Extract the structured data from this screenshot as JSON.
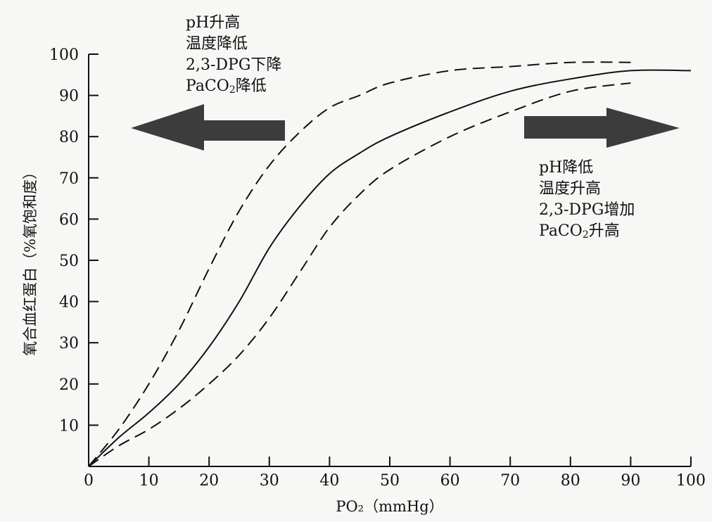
{
  "chart_data": {
    "type": "line",
    "xlabel": "PO₂（mmHg）",
    "ylabel": "氧合血红蛋白（%氧饱和度）",
    "xlim": [
      0,
      100
    ],
    "ylim": [
      0,
      100
    ],
    "x_ticks": [
      "0",
      "10",
      "20",
      "30",
      "40",
      "50",
      "60",
      "70",
      "80",
      "90",
      "100"
    ],
    "y_ticks": [
      "10",
      "20",
      "30",
      "40",
      "50",
      "60",
      "70",
      "80",
      "90",
      "100"
    ],
    "series": [
      {
        "style": "dashed",
        "x": [
          0,
          5,
          10,
          15,
          20,
          25,
          30,
          35,
          40,
          45,
          50,
          60,
          70,
          80,
          90
        ],
        "y": [
          0,
          9,
          20,
          33,
          48,
          62,
          73,
          81,
          87,
          90,
          93,
          96,
          97,
          98,
          98
        ]
      },
      {
        "style": "solid",
        "x": [
          0,
          5,
          10,
          15,
          20,
          25,
          30,
          35,
          40,
          45,
          50,
          60,
          70,
          80,
          90,
          100
        ],
        "y": [
          0,
          7,
          13,
          20,
          29,
          40,
          53,
          63,
          71,
          76,
          80,
          86,
          91,
          94,
          96,
          96
        ]
      },
      {
        "style": "dashed",
        "x": [
          0,
          5,
          10,
          15,
          20,
          25,
          30,
          35,
          40,
          45,
          50,
          60,
          70,
          80,
          90
        ],
        "y": [
          0,
          5,
          9,
          14,
          20,
          27,
          36,
          47,
          58,
          66,
          72,
          80,
          86,
          91,
          93
        ]
      }
    ],
    "annotations": {
      "left": {
        "direction": "left",
        "lines": [
          {
            "text": "pH升高"
          },
          {
            "text": "温度降低"
          },
          {
            "text": "2,3-DPG下降"
          },
          {
            "pre": "PaCO",
            "sub": "2",
            "post": "降低"
          }
        ]
      },
      "right": {
        "direction": "right",
        "lines": [
          {
            "text": "pH降低"
          },
          {
            "text": "温度升高"
          },
          {
            "text": "2,3-DPG增加"
          },
          {
            "pre": "PaCO",
            "sub": "2",
            "post": "升高"
          }
        ]
      }
    },
    "colors": {
      "line": "#111111",
      "arrow": "#3c3c3c"
    }
  }
}
